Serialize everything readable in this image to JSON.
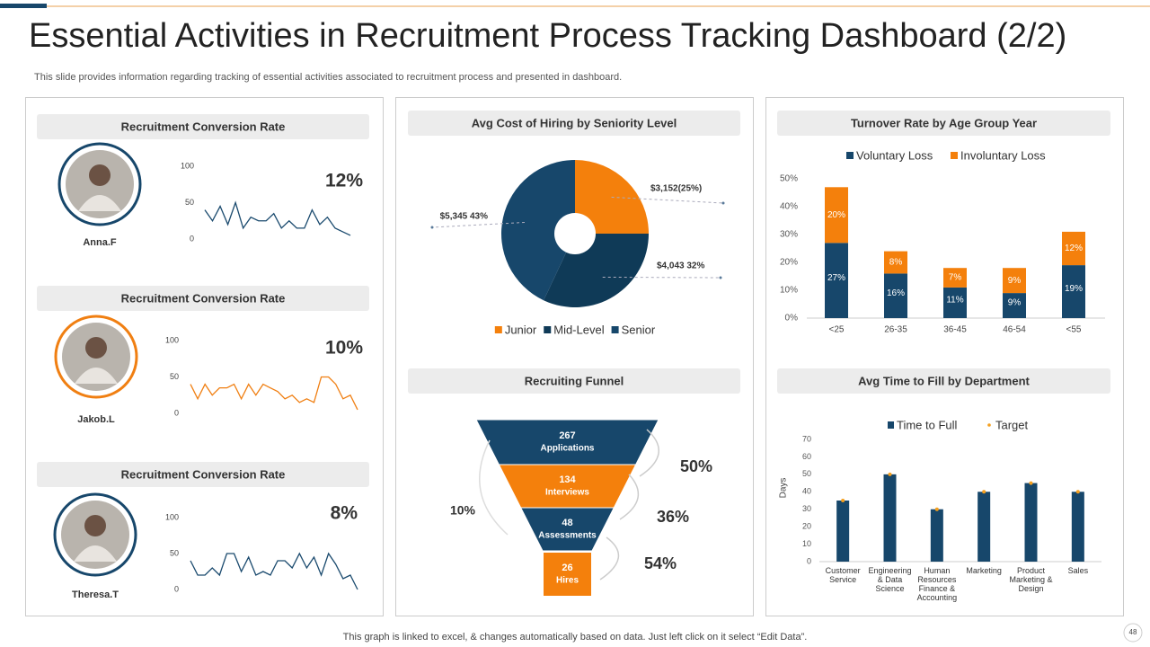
{
  "header": {
    "title": "Essential Activities in Recruitment Process Tracking Dashboard (2/2)",
    "subtitle": "This slide provides information regarding tracking of essential activities associated to recruitment process and presented in dashboard."
  },
  "footer": {
    "note": "This graph is linked to excel, & changes automatically based on data. Just left click on it select “Edit Data”.",
    "page": "48"
  },
  "chart_data": [
    {
      "type": "line",
      "title": "Recruitment Conversion Rate",
      "person": "Anna.F",
      "kpi": "12%",
      "color": "#1a4a6e",
      "ylim": [
        0,
        100
      ],
      "yticks": [
        0,
        50,
        100
      ],
      "values": [
        40,
        25,
        45,
        20,
        50,
        15,
        30,
        25,
        25,
        35,
        15,
        25,
        15,
        15,
        40,
        20,
        30,
        15,
        10,
        5
      ]
    },
    {
      "type": "line",
      "title": "Recruitment Conversion Rate",
      "person": "Jakob.L",
      "kpi": "10%",
      "color": "#f07f12",
      "ylim": [
        0,
        100
      ],
      "yticks": [
        0,
        50,
        100
      ],
      "values": [
        40,
        20,
        40,
        25,
        35,
        35,
        40,
        20,
        40,
        25,
        40,
        35,
        30,
        20,
        25,
        15,
        20,
        15,
        50,
        50,
        40,
        20,
        25,
        5
      ]
    },
    {
      "type": "line",
      "title": "Recruitment Conversion Rate",
      "person": "Theresa.T",
      "kpi": "8%",
      "color": "#1a4a6e",
      "ylim": [
        0,
        100
      ],
      "yticks": [
        0,
        50,
        100
      ],
      "values": [
        40,
        20,
        20,
        30,
        20,
        50,
        50,
        25,
        45,
        20,
        25,
        20,
        40,
        40,
        30,
        50,
        30,
        45,
        20,
        50,
        35,
        15,
        20,
        0
      ]
    },
    {
      "type": "pie",
      "title": "Avg Cost of Hiring by Seniority Level",
      "categories": [
        "Junior",
        "Mid-Level",
        "Senior"
      ],
      "values": [
        25,
        32,
        43
      ],
      "value_labels": [
        "$3,152(25%)",
        "$4,043 32%",
        "$5,345 43%"
      ],
      "colors": [
        "#f4800c",
        "#0f3a57",
        "#17476b"
      ],
      "legend": "bottom"
    },
    {
      "type": "funnel",
      "title": "Recruiting Funnel",
      "categories": [
        "Applications",
        "Interviews",
        "Assessments",
        "Hires"
      ],
      "values": [
        267,
        134,
        48,
        26
      ],
      "colors": [
        "#17476b",
        "#f4800c",
        "#17476b",
        "#f4800c"
      ],
      "conversions": [
        "50%",
        "36%",
        "54%"
      ],
      "overall": "10%"
    },
    {
      "type": "stacked_bar",
      "title": "Turnover Rate by Age Group Year",
      "categories": [
        "<25",
        "26-35",
        "36-45",
        "46-54",
        "<55"
      ],
      "series": [
        {
          "name": "Voluntary Loss",
          "color": "#17476b",
          "values": [
            27,
            16,
            11,
            9,
            19
          ],
          "value_labels": [
            "27%",
            "16%",
            "11%",
            "9%",
            "19%"
          ]
        },
        {
          "name": "Involuntary Loss",
          "color": "#f4800c",
          "values": [
            20,
            8,
            7,
            9,
            12
          ],
          "value_labels": [
            "20%",
            "8%",
            "7%",
            "9%",
            "12%"
          ]
        }
      ],
      "ylim": [
        0,
        50
      ],
      "yticks": [
        {
          "value": 0,
          "label": "0%"
        },
        {
          "value": 10,
          "label": "10%"
        },
        {
          "value": 20,
          "label": "20%"
        },
        {
          "value": 30,
          "label": "30%"
        },
        {
          "value": 40,
          "label": "40%"
        },
        {
          "value": 50,
          "label": "50%"
        }
      ],
      "legend": "top"
    },
    {
      "type": "bar",
      "title": "Avg Time to Fill by Department",
      "categories": [
        "Customer Service",
        "Engineering & Data Science",
        "Human Resources Finance & Accounting",
        "Marketing",
        "Product Marketing & Design",
        "Sales"
      ],
      "series": [
        {
          "name": "Time to Full",
          "color": "#17476b",
          "values": [
            35,
            50,
            30,
            40,
            45,
            40
          ]
        },
        {
          "name": "Target",
          "color": "#f4a020",
          "values": [
            35,
            50,
            30,
            40,
            45,
            40
          ]
        }
      ],
      "ylim": [
        0,
        70
      ],
      "yticks": [
        0,
        10,
        20,
        30,
        40,
        50,
        60,
        70
      ],
      "ylabel": "Days",
      "legend": "top"
    }
  ]
}
